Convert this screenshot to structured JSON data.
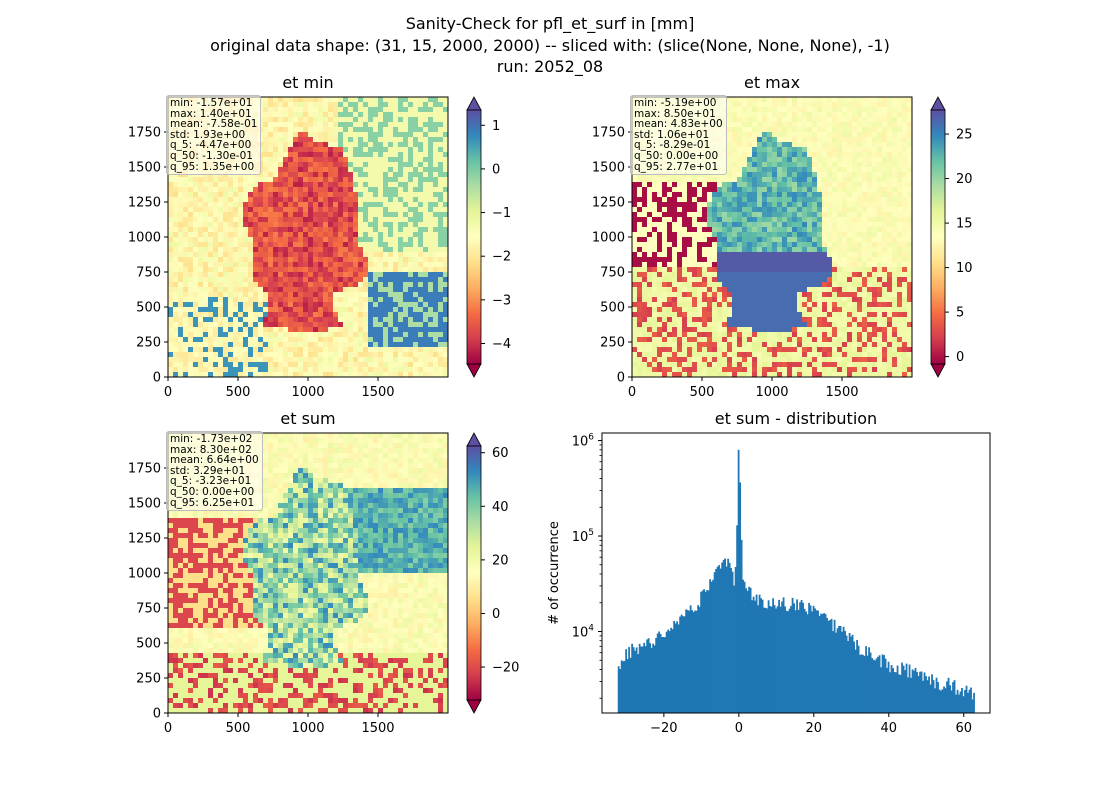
{
  "title_lines": [
    "Sanity-Check for pfl_et_surf in [mm]",
    "original data shape: (31, 15, 2000, 2000) -- sliced with: (slice(None, None, None), -1)",
    "run: 2052_08"
  ],
  "panels": {
    "et_min": {
      "title": "et min",
      "stats": [
        "min: -1.57e+01",
        "max: 1.40e+01",
        "mean: -7.58e-01",
        "std: 1.93e+00",
        "q_5: -4.47e+00",
        "q_50: -1.30e-01",
        "q_95: 1.35e+00"
      ]
    },
    "et_max": {
      "title": "et max",
      "stats": [
        "min: -5.19e+00",
        "max: 8.50e+01",
        "mean: 4.83e+00",
        "std: 1.06e+01",
        "q_5: -8.29e-01",
        "q_50: 0.00e+00",
        "q_95: 2.77e+01"
      ]
    },
    "et_sum": {
      "title": "et sum",
      "stats": [
        "min: -1.73e+02",
        "max: 8.30e+02",
        "mean: 6.64e+00",
        "std: 3.29e+01",
        "q_5: -3.23e+01",
        "q_50: 0.00e+00",
        "q_95: 6.25e+01"
      ]
    },
    "et_sum_dist": {
      "title": "et sum - distribution",
      "ylabel": "# of occurrence"
    }
  },
  "colormap": {
    "name": "Spectral",
    "stops": [
      "#9e0142",
      "#d53e4f",
      "#f46d43",
      "#fdae61",
      "#fee08b",
      "#ffffbf",
      "#e6f598",
      "#abdda4",
      "#66c2a5",
      "#3288bd",
      "#5e4fa2"
    ]
  },
  "chart_data": [
    {
      "type": "heatmap",
      "title": "et min",
      "x_ticks": [
        "0",
        "500",
        "1000",
        "1500"
      ],
      "y_ticks": [
        "0",
        "250",
        "500",
        "750",
        "1000",
        "1250",
        "1500",
        "1750"
      ],
      "xlim": [
        0,
        2000
      ],
      "ylim": [
        0,
        2000
      ],
      "colorbar": {
        "range": [
          -4.47,
          1.35
        ],
        "ticks": [
          "1",
          "0",
          "−1",
          "−2",
          "−3",
          "−4"
        ],
        "tick_values": [
          1,
          0,
          -1,
          -2,
          -3,
          -4
        ],
        "extend": "both"
      }
    },
    {
      "type": "heatmap",
      "title": "et max",
      "x_ticks": [
        "0",
        "500",
        "1000",
        "1500"
      ],
      "y_ticks": [
        "0",
        "250",
        "500",
        "750",
        "1000",
        "1250",
        "1500",
        "1750"
      ],
      "xlim": [
        0,
        2000
      ],
      "ylim": [
        0,
        2000
      ],
      "colorbar": {
        "range": [
          -0.829,
          27.7
        ],
        "ticks": [
          "25",
          "20",
          "15",
          "10",
          "5",
          "0"
        ],
        "tick_values": [
          25,
          20,
          15,
          10,
          5,
          0
        ],
        "extend": "both"
      }
    },
    {
      "type": "heatmap",
      "title": "et sum",
      "x_ticks": [
        "0",
        "500",
        "1000",
        "1500"
      ],
      "y_ticks": [
        "0",
        "250",
        "500",
        "750",
        "1000",
        "1250",
        "1500",
        "1750"
      ],
      "xlim": [
        0,
        2000
      ],
      "ylim": [
        0,
        2000
      ],
      "colorbar": {
        "range": [
          -32.3,
          62.5
        ],
        "ticks": [
          "60",
          "40",
          "20",
          "0",
          "−20"
        ],
        "tick_values": [
          60,
          40,
          20,
          0,
          -20
        ],
        "extend": "both"
      }
    },
    {
      "type": "bar",
      "title": "et sum - distribution",
      "ylabel": "# of occurrence",
      "y_scale": "log",
      "xlim": [
        -36.5,
        67
      ],
      "ylim": [
        1400,
        1200000
      ],
      "x_ticks": [
        "−20",
        "0",
        "20",
        "40",
        "60"
      ],
      "x_tick_values": [
        -20,
        0,
        20,
        40,
        60
      ],
      "y_ticks": [
        "10^4",
        "10^5",
        "10^6"
      ],
      "y_tick_values": [
        10000,
        100000,
        1000000
      ],
      "series": [
        {
          "x": [
            -32,
            -30,
            -28,
            -26,
            -24,
            -22,
            -20,
            -18,
            -16,
            -14,
            -12,
            -10,
            -8,
            -6,
            -4,
            -3,
            -2,
            -1,
            0,
            1,
            2,
            4,
            6,
            8,
            10,
            12,
            14,
            16,
            18,
            20,
            22,
            24,
            26,
            28,
            30,
            32,
            34,
            36,
            38,
            40,
            42,
            44,
            46,
            48,
            50,
            52,
            54,
            56,
            58,
            60,
            62
          ],
          "values": [
            4000,
            6000,
            6500,
            7200,
            7800,
            8500,
            9500,
            11000,
            12500,
            15000,
            18000,
            23000,
            30000,
            45000,
            65000,
            55000,
            40000,
            30000,
            800000,
            40000,
            28000,
            24000,
            21000,
            20000,
            20000,
            19500,
            19500,
            19000,
            18000,
            17000,
            15000,
            13000,
            11000,
            9500,
            8500,
            7000,
            6000,
            5500,
            5000,
            4500,
            4200,
            4000,
            3800,
            3500,
            3200,
            3000,
            2900,
            2800,
            2600,
            2400,
            2200
          ]
        }
      ]
    }
  ]
}
